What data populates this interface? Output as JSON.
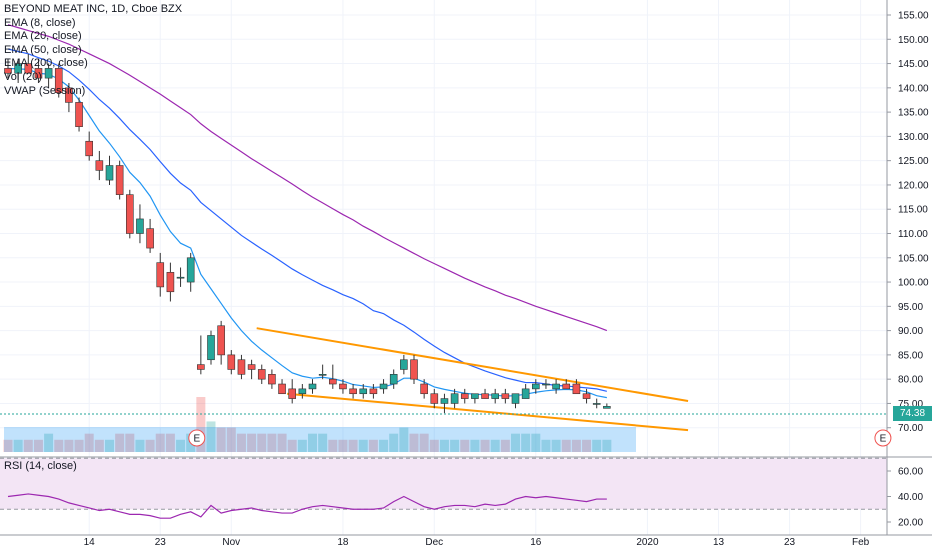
{
  "legend": {
    "title": "BEYOND MEAT INC, 1D, Cboe BZX",
    "lines": [
      "EMA (8, close)",
      "EMA (20, close)",
      "EMA (50, close)",
      "EMA (200, close)",
      "Vol (20)",
      "VWAP (Session)"
    ]
  },
  "rsi_label": "RSI (14, close)",
  "last_price": "74.38",
  "earnings_marker": "E",
  "colors": {
    "up": "#26a69a",
    "down": "#ef5350",
    "ema8": "#2196f3",
    "ema20": "#2962ff",
    "ema50": "#9c27b0",
    "trend": "#ff9800",
    "rsi": "#9c27b0",
    "rsi_band": "#f3e5f5"
  },
  "chart_data": [
    {
      "type": "candlestick",
      "title": "BEYOND MEAT INC, 1D, Cboe BZX",
      "ylim": [
        67,
        157
      ],
      "y_ticks": [
        70,
        75,
        80,
        85,
        90,
        95,
        100,
        105,
        110,
        115,
        120,
        125,
        130,
        135,
        140,
        145,
        150,
        155
      ],
      "x_tick_labels": [
        "14",
        "23",
        "Nov",
        "18",
        "Dec",
        "16",
        "2020",
        "13",
        "23",
        "Feb"
      ],
      "candles": [
        {
          "o": 144,
          "h": 146,
          "l": 142,
          "c": 143
        },
        {
          "o": 143,
          "h": 146,
          "l": 141,
          "c": 145
        },
        {
          "o": 145,
          "h": 147,
          "l": 143,
          "c": 143
        },
        {
          "o": 144,
          "h": 146,
          "l": 141,
          "c": 142
        },
        {
          "o": 142,
          "h": 145,
          "l": 140,
          "c": 144
        },
        {
          "o": 144,
          "h": 145,
          "l": 138,
          "c": 139
        },
        {
          "o": 140,
          "h": 141,
          "l": 135,
          "c": 137
        },
        {
          "o": 137,
          "h": 138,
          "l": 131,
          "c": 132
        },
        {
          "o": 129,
          "h": 131,
          "l": 125,
          "c": 126
        },
        {
          "o": 125,
          "h": 127,
          "l": 121,
          "c": 123
        },
        {
          "o": 121,
          "h": 126,
          "l": 120,
          "c": 124
        },
        {
          "o": 124,
          "h": 125,
          "l": 117,
          "c": 118
        },
        {
          "o": 118,
          "h": 119,
          "l": 109,
          "c": 110
        },
        {
          "o": 110,
          "h": 116,
          "l": 108,
          "c": 113
        },
        {
          "o": 111,
          "h": 113,
          "l": 106,
          "c": 107
        },
        {
          "o": 104,
          "h": 106,
          "l": 97,
          "c": 99
        },
        {
          "o": 102,
          "h": 104,
          "l": 96,
          "c": 98
        },
        {
          "o": 101,
          "h": 103,
          "l": 99,
          "c": 101
        },
        {
          "o": 100,
          "h": 106,
          "l": 98,
          "c": 105
        },
        {
          "o": 83,
          "h": 89,
          "l": 81,
          "c": 82
        },
        {
          "o": 84,
          "h": 90,
          "l": 83,
          "c": 89
        },
        {
          "o": 91,
          "h": 92,
          "l": 83,
          "c": 85
        },
        {
          "o": 85,
          "h": 86,
          "l": 81,
          "c": 82
        },
        {
          "o": 84,
          "h": 85,
          "l": 80,
          "c": 81
        },
        {
          "o": 83,
          "h": 84,
          "l": 80,
          "c": 82
        },
        {
          "o": 82,
          "h": 83,
          "l": 79,
          "c": 80
        },
        {
          "o": 81,
          "h": 82,
          "l": 78,
          "c": 79
        },
        {
          "o": 79,
          "h": 80,
          "l": 77,
          "c": 77
        },
        {
          "o": 78,
          "h": 80,
          "l": 75,
          "c": 76
        },
        {
          "o": 77,
          "h": 79,
          "l": 76,
          "c": 78
        },
        {
          "o": 78,
          "h": 80,
          "l": 77,
          "c": 79
        },
        {
          "o": 81,
          "h": 83,
          "l": 80,
          "c": 81
        },
        {
          "o": 80,
          "h": 83,
          "l": 78,
          "c": 79
        },
        {
          "o": 79,
          "h": 80,
          "l": 77,
          "c": 78
        },
        {
          "o": 78,
          "h": 79,
          "l": 76,
          "c": 77
        },
        {
          "o": 77,
          "h": 79,
          "l": 76,
          "c": 78
        },
        {
          "o": 78,
          "h": 79,
          "l": 76,
          "c": 77
        },
        {
          "o": 78,
          "h": 80,
          "l": 77,
          "c": 79
        },
        {
          "o": 79,
          "h": 82,
          "l": 78,
          "c": 81
        },
        {
          "o": 82,
          "h": 85,
          "l": 81,
          "c": 84
        },
        {
          "o": 84,
          "h": 85,
          "l": 79,
          "c": 80
        },
        {
          "o": 79,
          "h": 80,
          "l": 76,
          "c": 77
        },
        {
          "o": 77,
          "h": 78,
          "l": 74,
          "c": 75
        },
        {
          "o": 75,
          "h": 77,
          "l": 73,
          "c": 76
        },
        {
          "o": 75,
          "h": 78,
          "l": 74,
          "c": 77
        },
        {
          "o": 77,
          "h": 78,
          "l": 75,
          "c": 76
        },
        {
          "o": 76,
          "h": 77,
          "l": 75,
          "c": 77
        },
        {
          "o": 77,
          "h": 78,
          "l": 76,
          "c": 76
        },
        {
          "o": 76,
          "h": 78,
          "l": 75,
          "c": 77
        },
        {
          "o": 77,
          "h": 78,
          "l": 75,
          "c": 76
        },
        {
          "o": 75,
          "h": 77,
          "l": 74,
          "c": 77
        },
        {
          "o": 76,
          "h": 79,
          "l": 76,
          "c": 78
        },
        {
          "o": 78,
          "h": 80,
          "l": 77,
          "c": 79
        },
        {
          "o": 79,
          "h": 80,
          "l": 78,
          "c": 79
        },
        {
          "o": 78,
          "h": 80,
          "l": 77,
          "c": 79
        },
        {
          "o": 79,
          "h": 80,
          "l": 78,
          "c": 78
        },
        {
          "o": 79,
          "h": 80,
          "l": 77,
          "c": 77
        },
        {
          "o": 77,
          "h": 78,
          "l": 75,
          "c": 76
        },
        {
          "o": 75,
          "h": 76,
          "l": 74,
          "c": 75
        },
        {
          "o": 74,
          "h": 75,
          "l": 74,
          "c": 74.4
        }
      ],
      "volume": [
        2,
        2,
        2,
        2,
        3,
        2,
        2,
        2,
        3,
        2,
        2,
        3,
        3,
        2,
        2,
        3,
        3,
        2,
        3,
        9,
        5,
        4,
        4,
        3,
        3,
        3,
        3,
        3,
        2,
        2,
        3,
        3,
        2,
        2,
        2,
        2,
        2,
        2,
        3,
        4,
        3,
        3,
        2,
        2,
        2,
        2,
        2,
        2,
        2,
        2,
        3,
        3,
        3,
        2,
        2,
        2,
        2,
        2,
        2,
        2
      ],
      "ema8": [
        144,
        143.9,
        143.8,
        143,
        142.8,
        141.8,
        140.2,
        137.5,
        134.3,
        131.1,
        128.6,
        125.8,
        122.6,
        120.5,
        117.7,
        113.8,
        110.4,
        108,
        107,
        101.6,
        98.6,
        95.6,
        92.6,
        90,
        87.8,
        86,
        84.4,
        82.8,
        81.3,
        80.6,
        80.2,
        80.4,
        80.1,
        79.6,
        78.9,
        78.6,
        78.3,
        78.4,
        79,
        80.2,
        80.2,
        79.4,
        78.4,
        77.9,
        77.5,
        77.1,
        76.9,
        76.8,
        76.7,
        76.5,
        76.6,
        76.9,
        77.3,
        77.6,
        77.8,
        77.9,
        77.8,
        77.4,
        76.6,
        76.2
      ],
      "ema20": [
        148,
        147.5,
        147,
        146.2,
        145.5,
        144.5,
        143.3,
        141.6,
        139.7,
        137.6,
        135.8,
        133.7,
        131.4,
        129.4,
        127.3,
        124.8,
        122.4,
        120.4,
        118.9,
        116.4,
        114.7,
        113,
        111.3,
        109.6,
        108.2,
        106.8,
        105.5,
        104.1,
        102.7,
        101.5,
        100.4,
        99.3,
        98.4,
        97.4,
        96.6,
        95.5,
        94.1,
        93.5,
        92.2,
        91.1,
        89.7,
        88.2,
        86.8,
        85.5,
        84.4,
        83.3,
        82.5,
        81.7,
        81,
        80.3,
        79.8,
        79.3,
        79.3,
        79,
        78.7,
        78.6,
        78.4,
        78.2,
        78,
        77.5
      ],
      "ema50": [
        153,
        152.4,
        151.8,
        151.2,
        150.6,
        149.8,
        149,
        148,
        147,
        146,
        145,
        143.8,
        142.6,
        141.3,
        140,
        138.7,
        137.3,
        135.9,
        134.5,
        132.6,
        131,
        129.6,
        128.2,
        126.8,
        125.4,
        124.1,
        122.8,
        121.5,
        120.2,
        118.8,
        117.5,
        116.3,
        115.1,
        113.9,
        112.8,
        111.5,
        110.4,
        109.2,
        108.1,
        107,
        105.9,
        104.8,
        103.8,
        102.8,
        101.8,
        100.8,
        99.9,
        99,
        98.2,
        97.3,
        96.6,
        95.8,
        95,
        94.3,
        93.6,
        92.9,
        92.2,
        91.5,
        90.8,
        90
      ],
      "trend_upper": [
        [
          24.5,
          90.5
        ],
        [
          67,
          75.5
        ]
      ],
      "trend_lower": [
        [
          27.5,
          77
        ],
        [
          67,
          69.5
        ]
      ]
    },
    {
      "type": "line",
      "title": "RSI (14, close)",
      "ylim": [
        17,
        67
      ],
      "y_ticks": [
        20,
        40,
        60
      ],
      "band": [
        30,
        70
      ],
      "values": [
        40,
        41,
        42,
        41,
        40,
        38,
        35,
        33,
        31,
        29,
        30,
        28,
        26,
        26,
        25,
        23,
        23,
        26,
        28,
        24,
        33,
        27,
        29,
        30,
        31,
        29,
        28,
        27,
        27,
        30,
        32,
        33,
        32,
        31,
        30,
        30,
        30,
        31,
        36,
        40,
        36,
        32,
        30,
        32,
        33,
        33,
        32,
        34,
        33,
        34,
        38,
        40,
        39,
        40,
        39,
        38,
        37,
        36,
        38,
        38
      ]
    }
  ]
}
